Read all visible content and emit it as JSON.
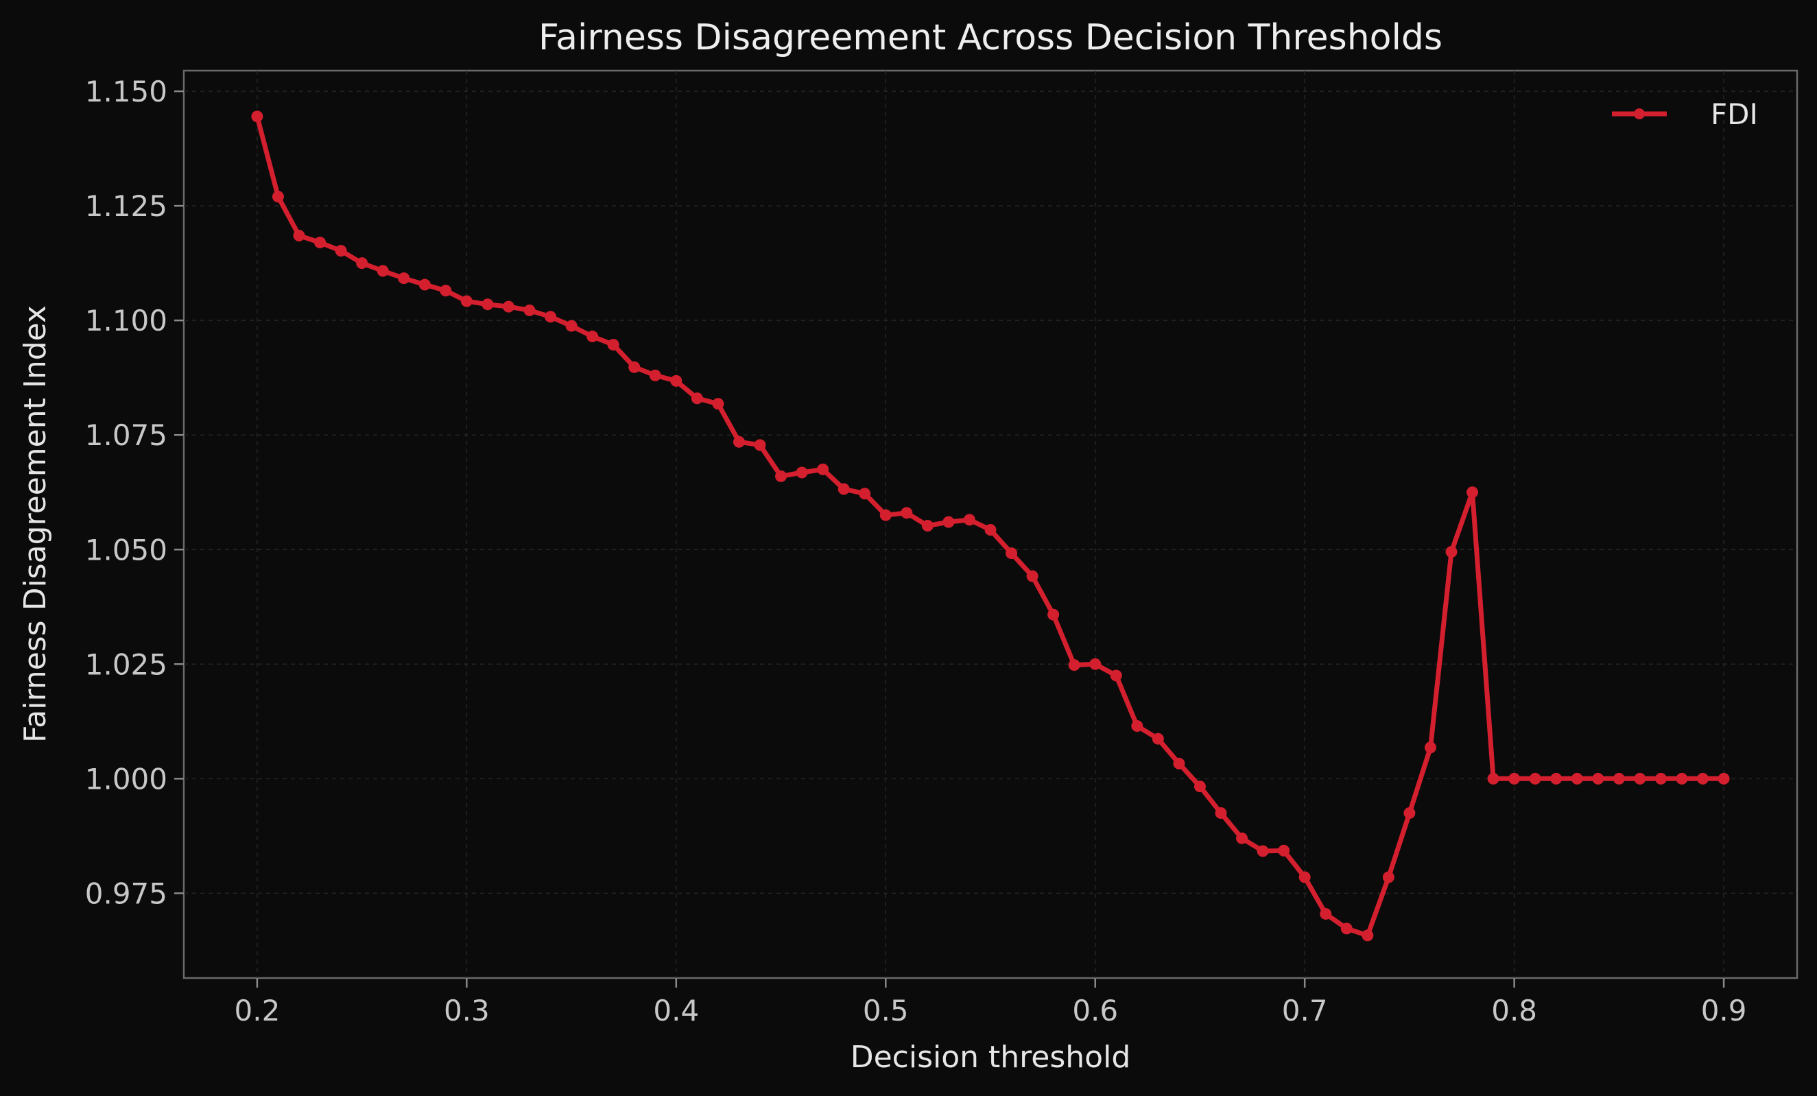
{
  "chart_data": {
    "type": "line",
    "title": "Fairness Disagreement Across Decision Thresholds",
    "xlabel": "Decision threshold",
    "ylabel": "Fairness Disagreement Index",
    "xlim": [
      0.165,
      0.935
    ],
    "ylim": [
      0.9565,
      1.1545
    ],
    "xticks": [
      0.2,
      0.3,
      0.4,
      0.5,
      0.6,
      0.7,
      0.8,
      0.9
    ],
    "xtick_labels": [
      "0.2",
      "0.3",
      "0.4",
      "0.5",
      "0.6",
      "0.7",
      "0.8",
      "0.9"
    ],
    "yticks": [
      0.975,
      1.0,
      1.025,
      1.05,
      1.075,
      1.1,
      1.125,
      1.15
    ],
    "ytick_labels": [
      "0.975",
      "1.000",
      "1.025",
      "1.050",
      "1.075",
      "1.100",
      "1.125",
      "1.150"
    ],
    "grid": true,
    "legend_position": "top-right",
    "series": [
      {
        "name": "FDI",
        "color": "#d41f2e",
        "marker": "circle",
        "x": [
          0.2,
          0.21,
          0.22,
          0.23,
          0.24,
          0.25,
          0.26,
          0.27,
          0.28,
          0.29,
          0.3,
          0.31,
          0.32,
          0.33,
          0.34,
          0.35,
          0.36,
          0.37,
          0.38,
          0.39,
          0.4,
          0.41,
          0.42,
          0.43,
          0.44,
          0.45,
          0.46,
          0.47,
          0.48,
          0.49,
          0.5,
          0.51,
          0.52,
          0.53,
          0.54,
          0.55,
          0.56,
          0.57,
          0.58,
          0.59,
          0.6,
          0.61,
          0.62,
          0.63,
          0.64,
          0.65,
          0.66,
          0.67,
          0.68,
          0.69,
          0.7,
          0.71,
          0.72,
          0.73,
          0.74,
          0.75,
          0.76,
          0.77,
          0.78,
          0.79,
          0.8,
          0.81,
          0.82,
          0.83,
          0.84,
          0.85,
          0.86,
          0.87,
          0.88,
          0.89,
          0.9
        ],
        "y": [
          1.1445,
          1.127,
          1.1185,
          1.117,
          1.1152,
          1.1125,
          1.1108,
          1.1092,
          1.1078,
          1.1065,
          1.1042,
          1.1035,
          1.103,
          1.1022,
          1.1008,
          1.0988,
          1.0965,
          1.0947,
          1.0898,
          1.088,
          1.0868,
          1.083,
          1.0818,
          1.0735,
          1.0728,
          1.066,
          1.0668,
          1.0675,
          1.0632,
          1.0622,
          1.0575,
          1.058,
          1.0552,
          1.056,
          1.0565,
          1.0543,
          1.0492,
          1.0442,
          1.0358,
          1.0248,
          1.025,
          1.0225,
          1.0115,
          1.0087,
          1.0033,
          0.9983,
          0.9925,
          0.987,
          0.9842,
          0.9843,
          0.9785,
          0.9705,
          0.9673,
          0.9658,
          0.9785,
          0.9925,
          1.0068,
          1.0495,
          1.0625,
          1.0,
          1.0,
          1.0,
          1.0,
          1.0,
          1.0,
          1.0,
          1.0,
          1.0,
          1.0,
          1.0,
          1.0
        ]
      }
    ]
  }
}
